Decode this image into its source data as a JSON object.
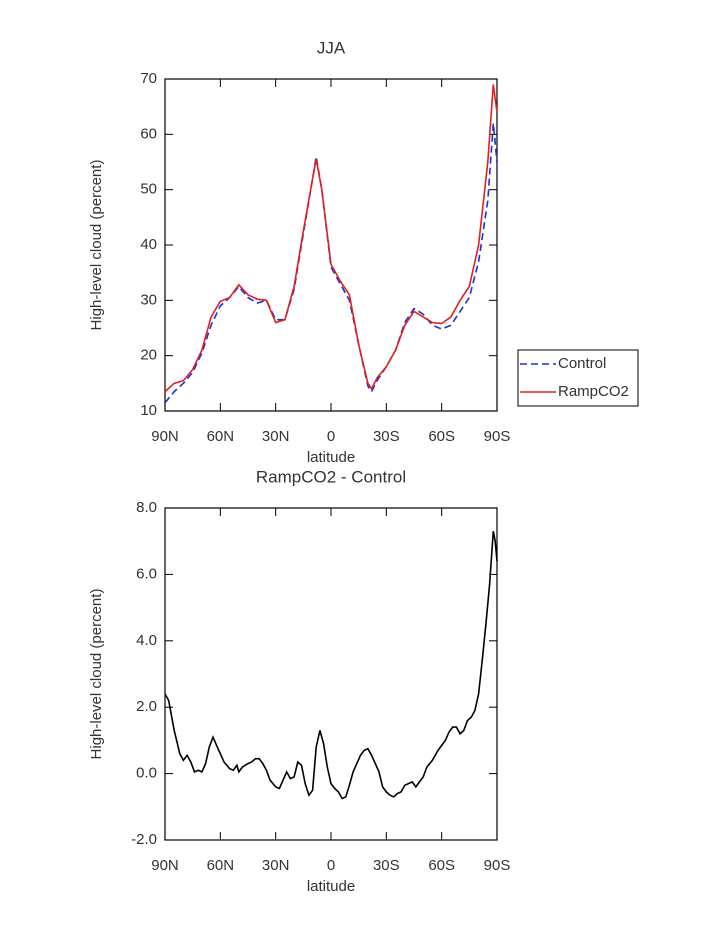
{
  "chart_data": [
    {
      "type": "line",
      "title": "JJA",
      "xlabel": "latitude",
      "ylabel": "High-level cloud (percent)",
      "x": [
        90,
        85,
        80,
        75,
        70,
        65,
        60,
        55,
        50,
        45,
        40,
        35,
        30,
        25,
        20,
        15,
        10,
        8,
        5,
        0,
        -5,
        -10,
        -15,
        -20,
        -22,
        -25,
        -30,
        -35,
        -40,
        -45,
        -50,
        -55,
        -60,
        -65,
        -70,
        -75,
        -80,
        -85,
        -88,
        -90
      ],
      "series": [
        {
          "name": "Control",
          "color": "#1f2fd0",
          "line_style": "dashed",
          "values": [
            11.5,
            13.5,
            15,
            17,
            20.5,
            25.5,
            29,
            30.5,
            32.5,
            30.5,
            29.5,
            30,
            26.5,
            26.5,
            32,
            42,
            52,
            56,
            50,
            36,
            33,
            30,
            22,
            14.5,
            13.5,
            15.5,
            18,
            21,
            26,
            28.5,
            27.5,
            25.5,
            24.8,
            25.5,
            28,
            30.5,
            37,
            48,
            62,
            55
          ]
        },
        {
          "name": "RampCO2",
          "color": "#e02020",
          "line_style": "solid",
          "values": [
            13.5,
            15,
            15.5,
            17.5,
            21,
            27,
            29.8,
            30.5,
            32.8,
            31,
            30.2,
            30,
            26,
            26.5,
            32.5,
            42.5,
            52,
            55.5,
            50,
            36.5,
            33.5,
            31,
            22,
            15,
            14,
            16,
            18,
            21,
            25.5,
            28,
            27,
            26,
            25.8,
            27,
            30,
            32.5,
            40,
            55,
            69,
            64
          ]
        }
      ],
      "xlim": [
        90,
        -90
      ],
      "xticks": [
        {
          "value": 90,
          "label": "90N"
        },
        {
          "value": 60,
          "label": "60N"
        },
        {
          "value": 30,
          "label": "30N"
        },
        0,
        {
          "value": -30,
          "label": "30S"
        },
        {
          "value": -60,
          "label": "60S"
        },
        {
          "value": -90,
          "label": "90S"
        }
      ],
      "ylim": [
        10,
        70
      ],
      "yticks": [
        10,
        20,
        30,
        40,
        50,
        60,
        70
      ],
      "legend": "right"
    },
    {
      "type": "line",
      "title": "RampCO2 - Control",
      "xlabel": "latitude",
      "ylabel": "High-level cloud (percent)",
      "x": [
        90,
        88,
        85,
        82,
        80,
        78,
        76,
        74,
        72,
        70,
        68,
        66,
        64,
        62,
        60,
        58,
        55,
        53,
        51,
        50,
        48,
        45,
        43,
        41,
        39,
        37,
        35,
        33,
        30,
        28,
        26,
        24,
        22,
        20,
        18,
        16,
        14,
        12,
        10,
        8,
        6,
        4,
        2,
        0,
        -2,
        -4,
        -6,
        -8,
        -10,
        -12,
        -14,
        -16,
        -18,
        -20,
        -22,
        -24,
        -26,
        -28,
        -30,
        -32,
        -34,
        -36,
        -38,
        -40,
        -42,
        -44,
        -46,
        -48,
        -50,
        -52,
        -55,
        -58,
        -60,
        -62,
        -64,
        -66,
        -68,
        -70,
        -72,
        -74,
        -76,
        -78,
        -80,
        -82,
        -84,
        -86,
        -88,
        -89,
        -90
      ],
      "values": [
        2.4,
        2.2,
        1.3,
        0.6,
        0.4,
        0.55,
        0.35,
        0.05,
        0.1,
        0.05,
        0.3,
        0.8,
        1.1,
        0.85,
        0.6,
        0.35,
        0.15,
        0.1,
        0.25,
        0.05,
        0.2,
        0.3,
        0.35,
        0.45,
        0.45,
        0.3,
        0.1,
        -0.2,
        -0.4,
        -0.45,
        -0.2,
        0.05,
        -0.15,
        -0.1,
        0.35,
        0.25,
        -0.3,
        -0.65,
        -0.5,
        0.8,
        1.3,
        0.9,
        0.2,
        -0.3,
        -0.45,
        -0.55,
        -0.75,
        -0.7,
        -0.35,
        0.05,
        0.3,
        0.55,
        0.7,
        0.75,
        0.55,
        0.3,
        0.05,
        -0.4,
        -0.55,
        -0.65,
        -0.7,
        -0.6,
        -0.55,
        -0.35,
        -0.3,
        -0.25,
        -0.4,
        -0.25,
        -0.1,
        0.2,
        0.4,
        0.7,
        0.85,
        1.0,
        1.25,
        1.4,
        1.4,
        1.2,
        1.3,
        1.6,
        1.7,
        1.9,
        2.4,
        3.4,
        4.5,
        5.7,
        7.3,
        7.0,
        6.4
      ],
      "color": "#000000",
      "xlim": [
        90,
        -90
      ],
      "xticks": [
        {
          "value": 90,
          "label": "90N"
        },
        {
          "value": 60,
          "label": "60N"
        },
        {
          "value": 30,
          "label": "30N"
        },
        0,
        {
          "value": -30,
          "label": "30S"
        },
        {
          "value": -60,
          "label": "60S"
        },
        {
          "value": -90,
          "label": "90S"
        }
      ],
      "ylim": [
        -2,
        8
      ],
      "yticks": [
        {
          "value": -2,
          "label": "-2.0"
        },
        {
          "value": 0,
          "label": "0.0"
        },
        {
          "value": 2,
          "label": "2.0"
        },
        {
          "value": 4,
          "label": "4.0"
        },
        {
          "value": 6,
          "label": "6.0"
        },
        {
          "value": 8,
          "label": "8.0"
        }
      ]
    }
  ]
}
